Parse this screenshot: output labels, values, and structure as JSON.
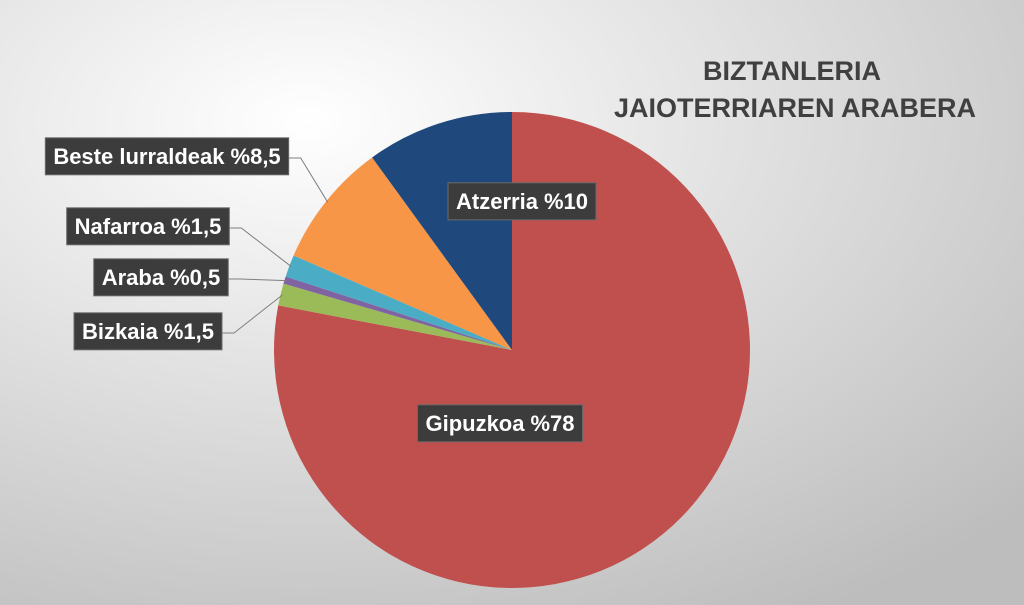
{
  "chart_data": {
    "type": "pie",
    "title": [
      "BIZTANLERIA",
      "JAIOTERRIAREN ARABERA"
    ],
    "categories": [
      "Gipuzkoa",
      "Bizkaia",
      "Araba",
      "Nafarroa",
      "Beste lurraldeak",
      "Atzerria"
    ],
    "values": [
      78,
      1.5,
      0.5,
      1.5,
      8.5,
      10
    ],
    "value_labels": [
      "%78",
      "%1,5",
      "%0,5",
      "%1,5",
      "%8,5",
      "%10"
    ],
    "colors": [
      "#c0504d",
      "#9bbb59",
      "#8064a2",
      "#4bacc6",
      "#f79646",
      "#1f497d"
    ]
  }
}
